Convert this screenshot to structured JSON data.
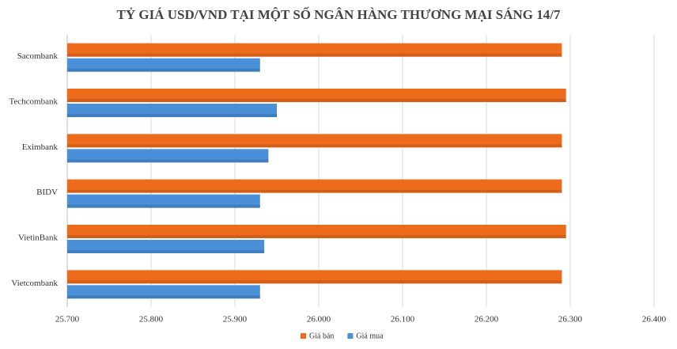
{
  "chart_data": {
    "type": "hbar",
    "title": "TỶ GIÁ USD/VND TẠI MỘT SỐ NGÂN HÀNG THƯƠNG MẠI SÁNG 14/7",
    "categories": [
      "Sacombank",
      "Techcombank",
      "Eximbank",
      "BIDV",
      "VietinBank",
      "Vietcombank"
    ],
    "series": [
      {
        "name": "Giá bán",
        "color": "#ef6b1c",
        "values": [
          26290,
          26295,
          26290,
          26290,
          26295,
          26290
        ]
      },
      {
        "name": "Giá mua",
        "color": "#4a90d8",
        "values": [
          25930,
          25950,
          25940,
          25930,
          25935,
          25930
        ]
      }
    ],
    "xlim": [
      25700,
      26400
    ],
    "xticks": [
      {
        "value": 25700,
        "label": "25.700"
      },
      {
        "value": 25800,
        "label": "25.800"
      },
      {
        "value": 25900,
        "label": "25.900"
      },
      {
        "value": 26000,
        "label": "26.000"
      },
      {
        "value": 26100,
        "label": "26.100"
      },
      {
        "value": 26200,
        "label": "26.200"
      },
      {
        "value": 26300,
        "label": "26.300"
      },
      {
        "value": 26400,
        "label": "26.400"
      }
    ],
    "grid": true,
    "legend": "bottom"
  }
}
